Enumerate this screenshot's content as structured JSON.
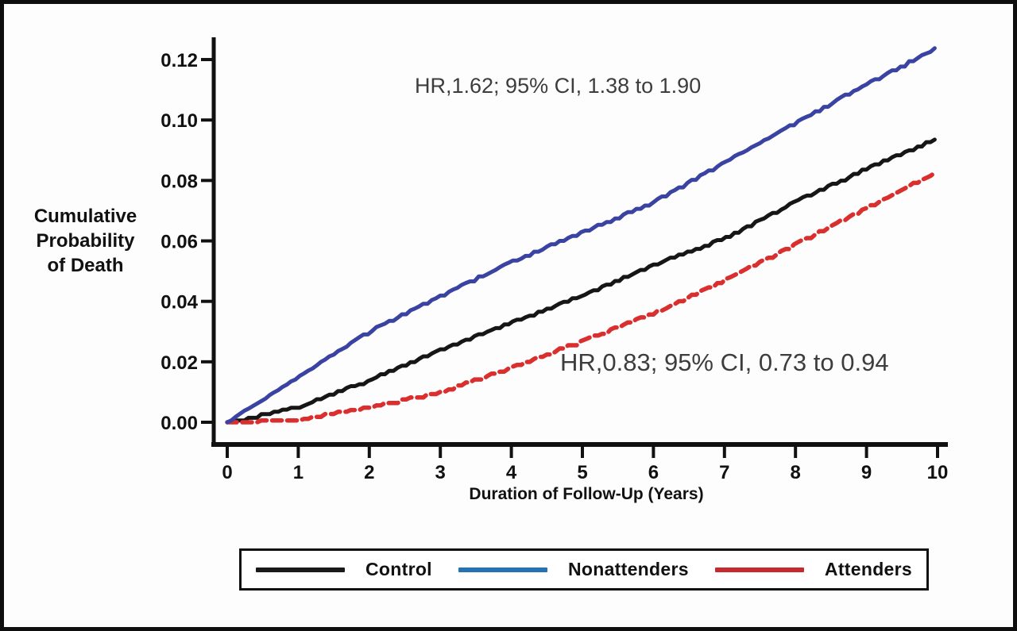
{
  "chart_data": {
    "type": "line",
    "title": "",
    "xlabel": "Duration of Follow-Up (Years)",
    "ylabel": "Cumulative Probability of Death",
    "ylabel_lines": [
      "Cumulative",
      "Probability",
      "of Death"
    ],
    "xlim": [
      0,
      10
    ],
    "ylim": [
      0,
      0.128
    ],
    "grid": false,
    "legend_position": "bottom",
    "x_ticks": [
      0,
      1,
      2,
      3,
      4,
      5,
      6,
      7,
      8,
      9,
      10
    ],
    "y_ticks": [
      "0.00",
      "0.02",
      "0.04",
      "0.06",
      "0.08",
      "0.10",
      "0.12"
    ],
    "x": [
      0,
      1,
      2,
      3,
      4,
      5,
      6,
      7,
      8,
      9,
      10
    ],
    "series": [
      {
        "name": "Control",
        "color": "#161616",
        "line_style": "solid",
        "values": [
          0,
          0.005,
          0.014,
          0.024,
          0.033,
          0.042,
          0.052,
          0.061,
          0.073,
          0.084,
          0.094
        ]
      },
      {
        "name": "Nonattenders",
        "color": "#3a43a2",
        "line_style": "solid",
        "values": [
          0,
          0.015,
          0.03,
          0.042,
          0.053,
          0.063,
          0.073,
          0.086,
          0.099,
          0.112,
          0.124
        ]
      },
      {
        "name": "Attenders",
        "color": "#d92f2f",
        "line_style": "dashed",
        "values": [
          0,
          0.001,
          0.005,
          0.01,
          0.018,
          0.027,
          0.036,
          0.047,
          0.059,
          0.071,
          0.083
        ]
      }
    ],
    "annotations": [
      {
        "text": "HR,1.62; 95% CI, 1.38 to 1.90"
      },
      {
        "text": "HR,0.83; 95% CI, 0.73 to 0.94"
      }
    ]
  },
  "legend": {
    "items": [
      {
        "label": "Control",
        "color": "#1a1a1a"
      },
      {
        "label": "Nonattenders",
        "color": "#2272b4"
      },
      {
        "label": "Attenders",
        "color": "#c62a2e"
      }
    ]
  }
}
